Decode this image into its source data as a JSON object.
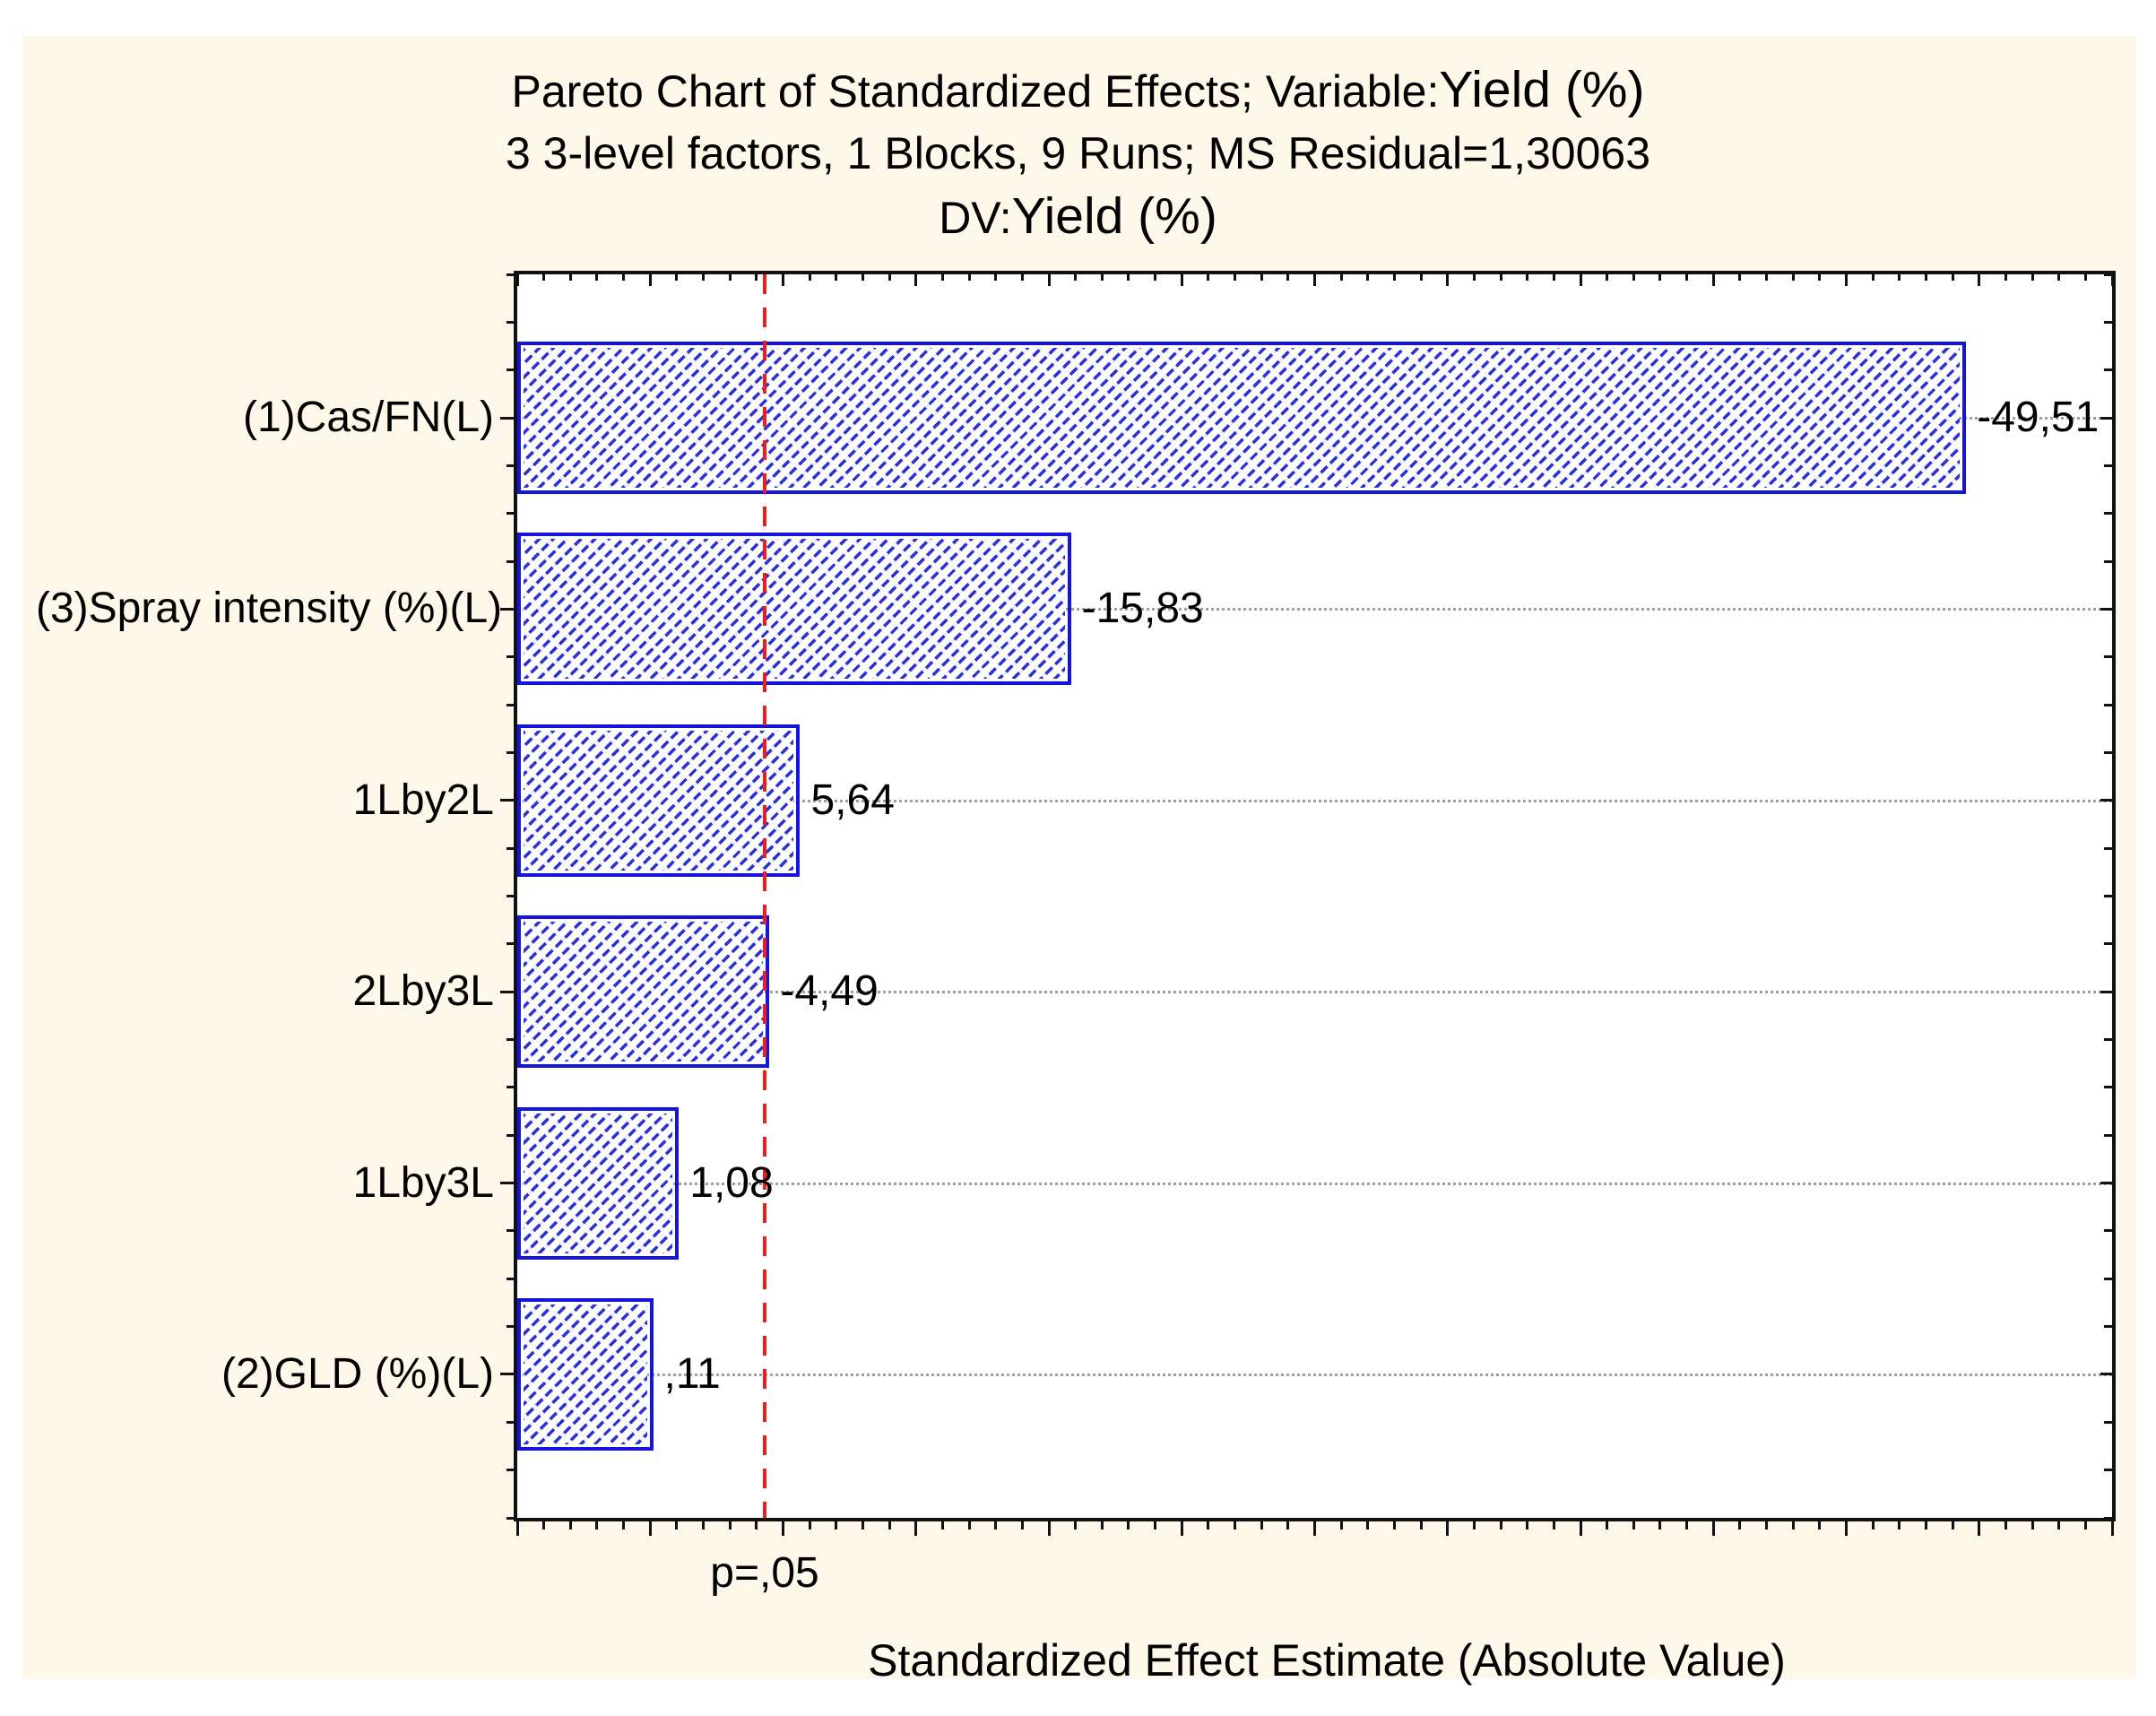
{
  "window": {
    "background": "#ffffff",
    "panel_background": "#fdf8e9"
  },
  "titles": {
    "line1_prefix": "Pareto Chart of Standardized Effects; Variable:",
    "line1_var": "Yield (%)",
    "line2": "3 3-level factors, 1 Blocks, 9 Runs; MS Residual=1,30063",
    "line3_prefix": "DV:",
    "line3_var": "Yield (%)"
  },
  "colors": {
    "bar_border": "#1414dd",
    "bar_hatch": "#2b33d6",
    "significance_line": "#f21b1b",
    "gridline": "#9e9e9e",
    "axis": "#111111",
    "text": "#000000"
  },
  "chart_data": {
    "type": "bar",
    "orientation": "horizontal",
    "title": "Pareto Chart of Standardized Effects; Variable:Yield (%)",
    "subtitle": "3 3-level factors, 1 Blocks, 9 Runs; MS Residual=1,30063",
    "subtitle2": "DV:Yield (%)",
    "xlabel": "Standardized Effect Estimate (Absolute Value)",
    "ylabel": "",
    "categories": [
      "(1)Cas/FN(L)",
      "(3)Spray intensity (%)(L)",
      "1Lby2L",
      "2Lby3L",
      "1Lby3L",
      "(2)GLD (%)(L)"
    ],
    "values": [
      -49.51,
      -15.83,
      5.64,
      -4.49,
      1.08,
      0.11
    ],
    "value_labels": [
      "-49,51",
      "-15,83",
      "5,64",
      "-4,49",
      "1,08",
      ",11"
    ],
    "bars_drawn_as_absolute_values": true,
    "xlim": [
      -5,
      55
    ],
    "x_minor_tick_step": 1,
    "x_major_tick_step": 5,
    "x_tick_labels_shown": false,
    "significance_line": {
      "label": "p=,05",
      "x_value": 4.3
    },
    "grid": "horizontal dotted lines at bar centers",
    "legend_position": "none",
    "bar_style": "blue dashed diagonal hatch with blue border"
  }
}
